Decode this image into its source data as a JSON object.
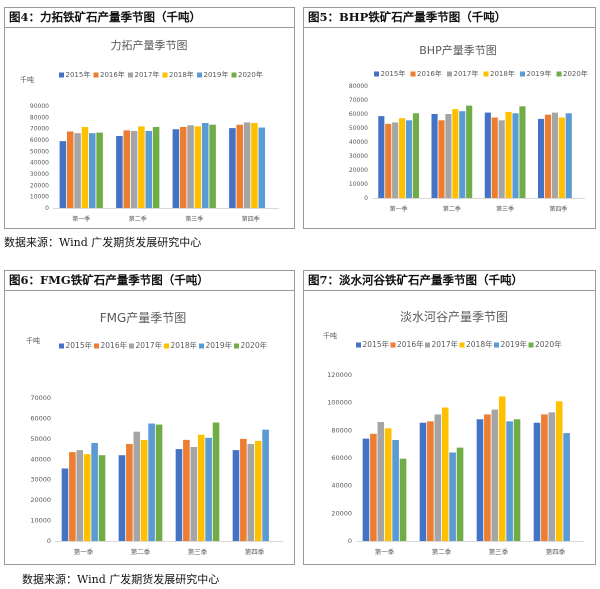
{
  "colors": [
    "#4472C4",
    "#ED7D31",
    "#A5A5A5",
    "#FFC000",
    "#5B9BD5",
    "#70AD47"
  ],
  "source_top": "数据来源：Wind  广发期货发展研究中心",
  "source_bottom": "数据来源：Wind  广发期货发展研究中心",
  "panels": [
    {
      "header": "图4：力拓铁矿石产量季节图（千吨）",
      "chart_data": {
        "type": "bar",
        "title": "力拓产量季节图",
        "ylabel": "千吨",
        "categories": [
          "第一季",
          "第二季",
          "第三季",
          "第四季"
        ],
        "ylim": [
          0,
          90000
        ],
        "yticks": [
          0,
          10000,
          20000,
          30000,
          40000,
          50000,
          60000,
          70000,
          80000,
          90000
        ],
        "legend_position": "top",
        "series": [
          {
            "name": "2015年",
            "values": [
              59000,
              63500,
              69500,
              70500
            ]
          },
          {
            "name": "2016年",
            "values": [
              67500,
              68500,
              71500,
              73500
            ]
          },
          {
            "name": "2017年",
            "values": [
              66000,
              68000,
              73000,
              75500
            ]
          },
          {
            "name": "2018年",
            "values": [
              71500,
              72000,
              72000,
              75000
            ]
          },
          {
            "name": "2019年",
            "values": [
              66000,
              68000,
              75000,
              71000
            ]
          },
          {
            "name": "2020年",
            "values": [
              66500,
              71500,
              73500,
              null
            ]
          }
        ]
      }
    },
    {
      "header": "图5：BHP铁矿石产量季节图（千吨）",
      "chart_data": {
        "type": "bar",
        "title": "BHP产量季节图",
        "ylabel": "",
        "categories": [
          "第一季",
          "第二季",
          "第三季",
          "第四季"
        ],
        "ylim": [
          0,
          80000
        ],
        "yticks": [
          0,
          10000,
          20000,
          30000,
          40000,
          50000,
          60000,
          70000,
          80000
        ],
        "legend_position": "top",
        "series": [
          {
            "name": "2015年",
            "values": [
              58500,
              60000,
              61000,
              56500
            ]
          },
          {
            "name": "2016年",
            "values": [
              53000,
              55500,
              57500,
              59500
            ]
          },
          {
            "name": "2017年",
            "values": [
              54000,
              60000,
              55500,
              61000
            ]
          },
          {
            "name": "2018年",
            "values": [
              57000,
              63500,
              61500,
              57500
            ]
          },
          {
            "name": "2019年",
            "values": [
              55500,
              62000,
              60500,
              60500
            ]
          },
          {
            "name": "2020年",
            "values": [
              60500,
              66000,
              65500,
              null
            ]
          }
        ]
      }
    },
    {
      "header": "图6：FMG铁矿石产量季节图（千吨）",
      "chart_data": {
        "type": "bar",
        "title": "FMG产量季节图",
        "ylabel": "千吨",
        "categories": [
          "第一季",
          "第二季",
          "第三季",
          "第四季"
        ],
        "ylim": [
          0,
          70000
        ],
        "yticks": [
          0,
          10000,
          20000,
          30000,
          40000,
          50000,
          60000,
          70000
        ],
        "legend_position": "top",
        "series": [
          {
            "name": "2015年",
            "values": [
              35500,
              42000,
              45000,
              44500
            ]
          },
          {
            "name": "2016年",
            "values": [
              43500,
              47500,
              49500,
              50000
            ]
          },
          {
            "name": "2017年",
            "values": [
              44500,
              53500,
              46000,
              47500
            ]
          },
          {
            "name": "2018年",
            "values": [
              42500,
              49500,
              52000,
              49000
            ]
          },
          {
            "name": "2019年",
            "values": [
              48000,
              57500,
              50500,
              54500
            ]
          },
          {
            "name": "2020年",
            "values": [
              42000,
              57000,
              58000,
              null
            ]
          }
        ]
      }
    },
    {
      "header": "图7：淡水河谷铁矿石产量季节图（千吨）",
      "chart_data": {
        "type": "bar",
        "title": "淡水河谷产量季节图",
        "ylabel": "千吨",
        "categories": [
          "第一季",
          "第二季",
          "第三季",
          "第四季"
        ],
        "ylim": [
          0,
          120000
        ],
        "yticks": [
          0,
          20000,
          40000,
          60000,
          80000,
          100000,
          120000
        ],
        "legend_position": "top",
        "series": [
          {
            "name": "2015年",
            "values": [
              74000,
              85500,
              88000,
              85500
            ]
          },
          {
            "name": "2016年",
            "values": [
              77500,
              86500,
              91500,
              91500
            ]
          },
          {
            "name": "2017年",
            "values": [
              86000,
              91500,
              95000,
              93000
            ]
          },
          {
            "name": "2018年",
            "values": [
              81500,
              96500,
              104500,
              101000
            ]
          },
          {
            "name": "2019年",
            "values": [
              73000,
              64000,
              86500,
              78000
            ]
          },
          {
            "name": "2020年",
            "values": [
              59500,
              67500,
              88000,
              null
            ]
          }
        ]
      }
    }
  ]
}
